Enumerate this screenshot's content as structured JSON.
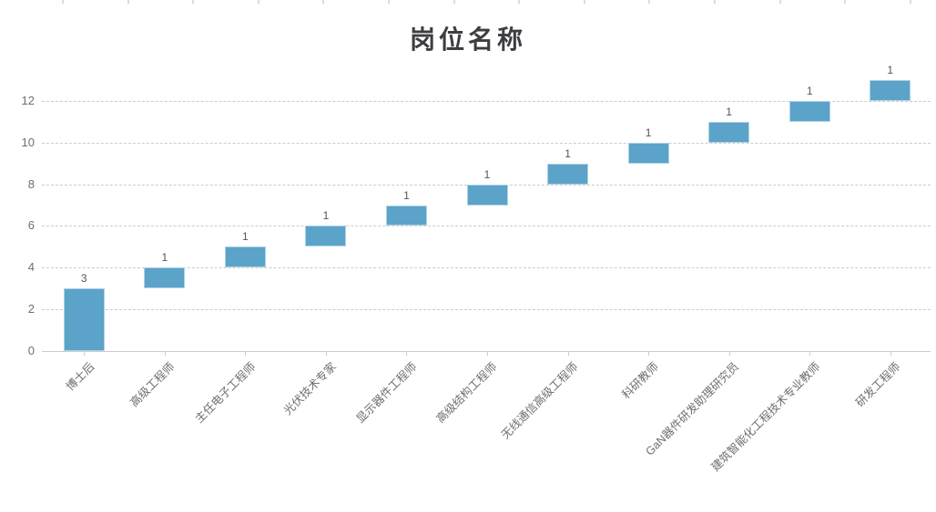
{
  "title": "岗位名称",
  "top_axis": {
    "description": "faint tick marks along top edge from chart above",
    "tick_count": 14
  },
  "chart_data": {
    "type": "bar",
    "variant": "waterfall",
    "title": "岗位名称",
    "categories": [
      "博士后",
      "高级工程师",
      "主任电子工程师",
      "光伏技术专家",
      "显示器件工程师",
      "高级结构工程师",
      "无线通信高级工程师",
      "科研教师",
      "GaN器件研发助理研究员",
      "建筑智能化工程技术专业教师",
      "研发工程师"
    ],
    "values": [
      3,
      1,
      1,
      1,
      1,
      1,
      1,
      1,
      1,
      1,
      1
    ],
    "base": [
      0,
      3,
      4,
      5,
      6,
      7,
      8,
      9,
      10,
      11,
      12
    ],
    "data_labels": [
      "3",
      "1",
      "1",
      "1",
      "1",
      "1",
      "1",
      "1",
      "1",
      "1",
      "1"
    ],
    "cumulative_totals": [
      3,
      4,
      5,
      6,
      7,
      8,
      9,
      10,
      11,
      12,
      13
    ],
    "xlabel": "",
    "ylabel": "",
    "yticks": [
      0,
      2,
      4,
      6,
      8,
      10,
      12
    ],
    "ylim": [
      0,
      13.2
    ],
    "grid": {
      "horizontal": true,
      "style": "dashed"
    },
    "legend": null,
    "x_label_rotation_deg": 45,
    "colors": {
      "bar_fill": "#5ba3c9",
      "bar_border": "#aed3e5",
      "grid_line": "#cccccc",
      "axis_line": "#cccccc",
      "axis_text": "#6e6e6e",
      "value_label": "#555555",
      "title_text": "#3d3d42",
      "top_tick": "#dcdcdc"
    }
  }
}
